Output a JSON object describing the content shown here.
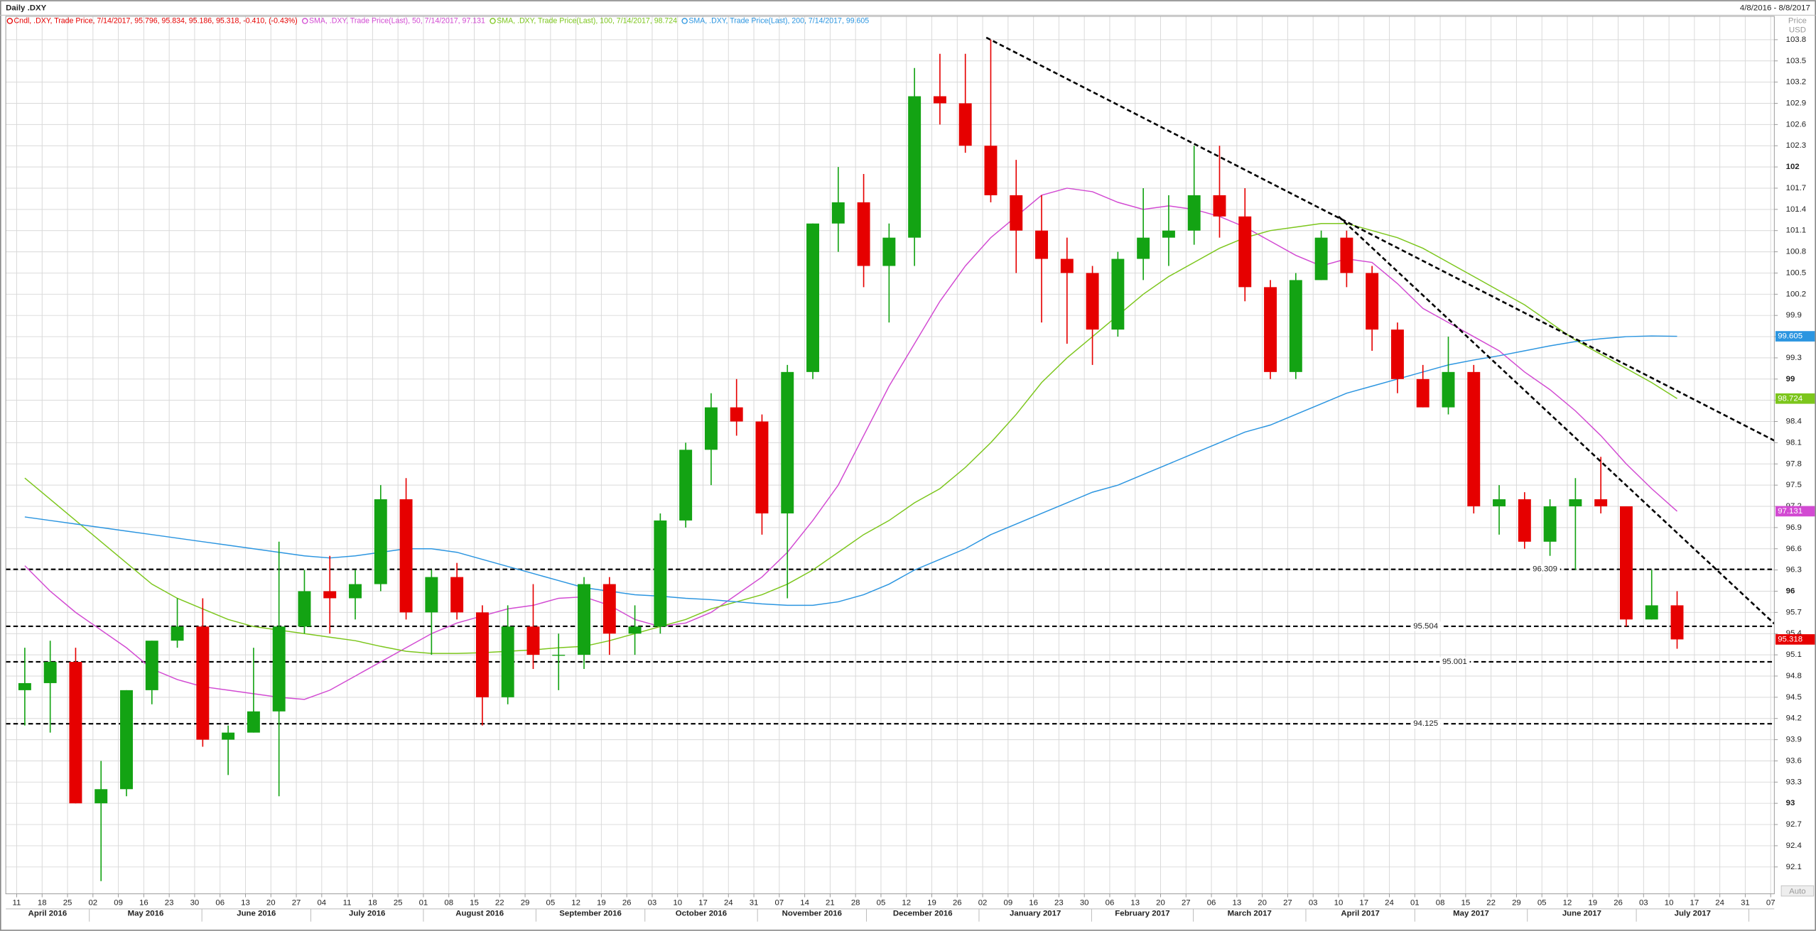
{
  "chart_data": {
    "type": "candlestick",
    "title": "Daily .DXY",
    "date_range": "4/8/2016 - 8/8/2017",
    "y_label_lines": [
      "Price",
      "USD"
    ],
    "y_scale_mode": "Auto",
    "grid": true,
    "up_color": "#13a313",
    "down_color": "#e60000",
    "xlim": [
      "2016-04-08",
      "2017-08-08"
    ],
    "ylim": [
      91.72,
      104.13
    ],
    "yticks": [
      103.8,
      103.5,
      103.2,
      102.9,
      102.6,
      102.3,
      102,
      101.7,
      101.4,
      101.1,
      100.8,
      100.5,
      100.2,
      99.9,
      99.6,
      99.3,
      99,
      98.7,
      98.4,
      98.1,
      97.8,
      97.5,
      97.2,
      96.9,
      96.6,
      96.3,
      96,
      95.7,
      95.4,
      95.1,
      94.8,
      94.5,
      94.2,
      93.9,
      93.6,
      93.3,
      93,
      92.7,
      92.4,
      92.1
    ],
    "xticks": [
      {
        "value": "2016-04-11",
        "label": "11"
      },
      {
        "value": "2016-04-18",
        "label": "18"
      },
      {
        "value": "2016-04-25",
        "label": "25"
      },
      {
        "value": "2016-05-02",
        "label": "02"
      },
      {
        "value": "2016-05-09",
        "label": "09"
      },
      {
        "value": "2016-05-16",
        "label": "16"
      },
      {
        "value": "2016-05-23",
        "label": "23"
      },
      {
        "value": "2016-05-30",
        "label": "30"
      },
      {
        "value": "2016-06-06",
        "label": "06"
      },
      {
        "value": "2016-06-13",
        "label": "13"
      },
      {
        "value": "2016-06-20",
        "label": "20"
      },
      {
        "value": "2016-06-27",
        "label": "27"
      },
      {
        "value": "2016-07-04",
        "label": "04"
      },
      {
        "value": "2016-07-11",
        "label": "11"
      },
      {
        "value": "2016-07-18",
        "label": "18"
      },
      {
        "value": "2016-07-25",
        "label": "25"
      },
      {
        "value": "2016-08-01",
        "label": "01"
      },
      {
        "value": "2016-08-08",
        "label": "08"
      },
      {
        "value": "2016-08-15",
        "label": "15"
      },
      {
        "value": "2016-08-22",
        "label": "22"
      },
      {
        "value": "2016-08-29",
        "label": "29"
      },
      {
        "value": "2016-09-05",
        "label": "05"
      },
      {
        "value": "2016-09-12",
        "label": "12"
      },
      {
        "value": "2016-09-19",
        "label": "19"
      },
      {
        "value": "2016-09-26",
        "label": "26"
      },
      {
        "value": "2016-10-03",
        "label": "03"
      },
      {
        "value": "2016-10-10",
        "label": "10"
      },
      {
        "value": "2016-10-17",
        "label": "17"
      },
      {
        "value": "2016-10-24",
        "label": "24"
      },
      {
        "value": "2016-10-31",
        "label": "31"
      },
      {
        "value": "2016-11-07",
        "label": "07"
      },
      {
        "value": "2016-11-14",
        "label": "14"
      },
      {
        "value": "2016-11-21",
        "label": "21"
      },
      {
        "value": "2016-11-28",
        "label": "28"
      },
      {
        "value": "2016-12-05",
        "label": "05"
      },
      {
        "value": "2016-12-12",
        "label": "12"
      },
      {
        "value": "2016-12-19",
        "label": "19"
      },
      {
        "value": "2016-12-26",
        "label": "26"
      },
      {
        "value": "2017-01-02",
        "label": "02"
      },
      {
        "value": "2017-01-09",
        "label": "09"
      },
      {
        "value": "2017-01-16",
        "label": "16"
      },
      {
        "value": "2017-01-23",
        "label": "23"
      },
      {
        "value": "2017-01-30",
        "label": "30"
      },
      {
        "value": "2017-02-06",
        "label": "06"
      },
      {
        "value": "2017-02-13",
        "label": "13"
      },
      {
        "value": "2017-02-20",
        "label": "20"
      },
      {
        "value": "2017-02-27",
        "label": "27"
      },
      {
        "value": "2017-03-06",
        "label": "06"
      },
      {
        "value": "2017-03-13",
        "label": "13"
      },
      {
        "value": "2017-03-20",
        "label": "20"
      },
      {
        "value": "2017-03-27",
        "label": "27"
      },
      {
        "value": "2017-04-03",
        "label": "03"
      },
      {
        "value": "2017-04-10",
        "label": "10"
      },
      {
        "value": "2017-04-17",
        "label": "17"
      },
      {
        "value": "2017-04-24",
        "label": "24"
      },
      {
        "value": "2017-05-01",
        "label": "01"
      },
      {
        "value": "2017-05-08",
        "label": "08"
      },
      {
        "value": "2017-05-15",
        "label": "15"
      },
      {
        "value": "2017-05-22",
        "label": "22"
      },
      {
        "value": "2017-05-29",
        "label": "29"
      },
      {
        "value": "2017-06-05",
        "label": "05"
      },
      {
        "value": "2017-06-12",
        "label": "12"
      },
      {
        "value": "2017-06-19",
        "label": "19"
      },
      {
        "value": "2017-06-26",
        "label": "26"
      },
      {
        "value": "2017-07-03",
        "label": "03"
      },
      {
        "value": "2017-07-10",
        "label": "10"
      },
      {
        "value": "2017-07-17",
        "label": "17"
      },
      {
        "value": "2017-07-24",
        "label": "24"
      },
      {
        "value": "2017-07-31",
        "label": "31"
      },
      {
        "value": "2017-08-07",
        "label": "07"
      }
    ],
    "months": [
      "April 2016",
      "May 2016",
      "June 2016",
      "July 2016",
      "August 2016",
      "September 2016",
      "October 2016",
      "November 2016",
      "December 2016",
      "January 2017",
      "February 2017",
      "March 2017",
      "April 2017",
      "May 2017",
      "June 2017",
      "July 2017"
    ],
    "candles": {
      "name": "Cndl, .DXY, Trade Price, 7/14/2017, 95.796, 95.834, 95.186, 95.318, -0.410, (-0.43%)",
      "color": "#e60000",
      "x": [
        "2016-04-11",
        "2016-04-18",
        "2016-04-25",
        "2016-05-02",
        "2016-05-09",
        "2016-05-16",
        "2016-05-23",
        "2016-05-30",
        "2016-06-06",
        "2016-06-13",
        "2016-06-20",
        "2016-06-27",
        "2016-07-04",
        "2016-07-11",
        "2016-07-18",
        "2016-07-25",
        "2016-08-01",
        "2016-08-08",
        "2016-08-15",
        "2016-08-22",
        "2016-08-29",
        "2016-09-05",
        "2016-09-12",
        "2016-09-19",
        "2016-09-26",
        "2016-10-03",
        "2016-10-10",
        "2016-10-17",
        "2016-10-24",
        "2016-10-31",
        "2016-11-07",
        "2016-11-14",
        "2016-11-21",
        "2016-11-28",
        "2016-12-05",
        "2016-12-12",
        "2016-12-19",
        "2016-12-26",
        "2017-01-02",
        "2017-01-09",
        "2017-01-16",
        "2017-01-23",
        "2017-01-30",
        "2017-02-06",
        "2017-02-13",
        "2017-02-20",
        "2017-02-27",
        "2017-03-06",
        "2017-03-13",
        "2017-03-20",
        "2017-03-27",
        "2017-04-03",
        "2017-04-10",
        "2017-04-17",
        "2017-04-24",
        "2017-05-01",
        "2017-05-08",
        "2017-05-15",
        "2017-05-22",
        "2017-05-29",
        "2017-06-05",
        "2017-06-12",
        "2017-06-19",
        "2017-06-26",
        "2017-07-03",
        "2017-07-10"
      ],
      "open": [
        94.6,
        94.7,
        95.0,
        93.0,
        93.2,
        94.6,
        95.3,
        95.5,
        93.9,
        94.0,
        94.3,
        95.5,
        96.0,
        95.9,
        96.1,
        97.3,
        95.7,
        96.2,
        95.7,
        94.5,
        95.5,
        95.1,
        95.1,
        96.1,
        95.4,
        95.5,
        97.0,
        98.0,
        98.6,
        98.4,
        97.1,
        99.1,
        101.2,
        101.5,
        100.6,
        101.0,
        103.0,
        102.9,
        102.3,
        101.6,
        101.1,
        100.7,
        100.5,
        99.7,
        100.7,
        101.0,
        101.1,
        101.6,
        101.3,
        100.3,
        99.1,
        100.4,
        101.0,
        100.5,
        99.7,
        99.0,
        98.6,
        99.1,
        97.2,
        97.3,
        96.7,
        97.2,
        97.3,
        97.2,
        95.6,
        95.8
      ],
      "high": [
        95.2,
        95.3,
        95.2,
        93.6,
        94.6,
        95.3,
        95.9,
        95.9,
        94.1,
        95.2,
        96.7,
        96.3,
        96.5,
        96.3,
        97.5,
        97.6,
        96.3,
        96.4,
        95.8,
        95.8,
        96.1,
        95.4,
        96.2,
        96.2,
        95.8,
        97.1,
        98.1,
        98.8,
        99.0,
        98.5,
        99.2,
        101.2,
        102.0,
        101.9,
        101.2,
        103.4,
        103.6,
        103.6,
        103.8,
        102.1,
        101.6,
        101.0,
        100.6,
        100.8,
        101.7,
        101.6,
        102.3,
        102.3,
        101.7,
        100.4,
        100.5,
        101.1,
        101.1,
        100.6,
        99.8,
        99.2,
        99.6,
        99.2,
        97.5,
        97.4,
        97.3,
        97.6,
        97.9,
        97.2,
        96.3,
        96.0
      ],
      "low": [
        94.1,
        94.0,
        93.0,
        91.9,
        93.1,
        94.4,
        95.2,
        93.8,
        93.4,
        94.0,
        93.1,
        95.4,
        95.4,
        95.6,
        96.0,
        95.6,
        95.1,
        95.6,
        94.1,
        94.4,
        94.9,
        94.6,
        94.9,
        95.1,
        95.1,
        95.4,
        96.9,
        97.5,
        98.2,
        96.8,
        95.9,
        99.0,
        100.8,
        100.3,
        99.8,
        100.6,
        102.6,
        102.2,
        101.5,
        100.5,
        99.8,
        99.5,
        99.2,
        99.6,
        100.4,
        100.6,
        100.9,
        101.0,
        100.1,
        99.0,
        99.0,
        100.4,
        100.3,
        99.4,
        98.8,
        98.6,
        98.5,
        97.1,
        96.8,
        96.6,
        96.5,
        96.3,
        97.1,
        95.5,
        95.6,
        95.186
      ],
      "close": [
        94.7,
        95.0,
        93.0,
        93.2,
        94.6,
        95.3,
        95.5,
        93.9,
        94.0,
        94.3,
        95.5,
        96.0,
        95.9,
        96.1,
        97.3,
        95.7,
        96.2,
        95.7,
        94.5,
        95.5,
        95.1,
        95.1,
        96.1,
        95.4,
        95.5,
        97.0,
        98.0,
        98.6,
        98.4,
        97.1,
        99.1,
        101.2,
        101.5,
        100.6,
        101.0,
        103.0,
        102.9,
        102.3,
        101.6,
        101.1,
        100.7,
        100.5,
        99.7,
        100.7,
        101.0,
        101.1,
        101.6,
        101.3,
        100.3,
        99.1,
        100.4,
        101.0,
        100.5,
        99.7,
        99.0,
        98.6,
        99.1,
        97.2,
        97.3,
        96.7,
        97.2,
        97.3,
        97.2,
        95.6,
        95.8,
        95.318
      ]
    },
    "series": [
      {
        "name": "SMA, .DXY, Trade Price(Last), 50, 7/14/2017, 97.131",
        "color": "#d24ad2",
        "values": [
          96.36,
          96.0,
          95.7,
          95.45,
          95.2,
          94.9,
          94.75,
          94.65,
          94.6,
          94.55,
          94.5,
          94.47,
          94.6,
          94.8,
          95.0,
          95.2,
          95.4,
          95.55,
          95.65,
          95.75,
          95.8,
          95.9,
          95.92,
          95.8,
          95.6,
          95.5,
          95.55,
          95.7,
          95.95,
          96.2,
          96.55,
          97.0,
          97.5,
          98.2,
          98.9,
          99.5,
          100.1,
          100.6,
          101.0,
          101.3,
          101.6,
          101.7,
          101.65,
          101.5,
          101.4,
          101.45,
          101.4,
          101.3,
          101.15,
          100.95,
          100.75,
          100.6,
          100.7,
          100.65,
          100.35,
          100.0,
          99.8,
          99.6,
          99.4,
          99.1,
          98.85,
          98.55,
          98.2,
          97.8,
          97.45,
          97.131
        ]
      },
      {
        "name": "SMA, .DXY, Trade Price(Last), 100, 7/14/2017, 98.724",
        "color": "#7cc61c",
        "values": [
          97.6,
          97.3,
          97.0,
          96.7,
          96.4,
          96.1,
          95.9,
          95.75,
          95.6,
          95.5,
          95.45,
          95.4,
          95.35,
          95.3,
          95.22,
          95.15,
          95.12,
          95.12,
          95.13,
          95.15,
          95.17,
          95.2,
          95.22,
          95.3,
          95.4,
          95.5,
          95.6,
          95.75,
          95.85,
          95.95,
          96.1,
          96.3,
          96.55,
          96.8,
          97.0,
          97.25,
          97.45,
          97.75,
          98.1,
          98.5,
          98.95,
          99.3,
          99.6,
          99.9,
          100.2,
          100.45,
          100.65,
          100.85,
          101.0,
          101.1,
          101.15,
          101.2,
          101.2,
          101.1,
          101.0,
          100.85,
          100.65,
          100.45,
          100.25,
          100.05,
          99.8,
          99.55,
          99.35,
          99.15,
          98.95,
          98.724
        ]
      },
      {
        "name": "SMA, .DXY, Trade Price(Last), 200, 7/14/2017, 99.605",
        "color": "#2b95e0",
        "values": [
          97.05,
          97.0,
          96.95,
          96.9,
          96.85,
          96.8,
          96.75,
          96.7,
          96.65,
          96.6,
          96.55,
          96.5,
          96.47,
          96.5,
          96.55,
          96.6,
          96.6,
          96.55,
          96.45,
          96.35,
          96.25,
          96.15,
          96.05,
          96.0,
          95.95,
          95.93,
          95.9,
          95.88,
          95.85,
          95.82,
          95.8,
          95.8,
          95.85,
          95.95,
          96.1,
          96.3,
          96.45,
          96.6,
          96.8,
          96.95,
          97.1,
          97.25,
          97.4,
          97.5,
          97.65,
          97.8,
          97.95,
          98.1,
          98.25,
          98.35,
          98.5,
          98.65,
          98.8,
          98.9,
          99.0,
          99.1,
          99.2,
          99.27,
          99.33,
          99.4,
          99.47,
          99.53,
          99.57,
          99.6,
          99.61,
          99.605
        ]
      }
    ],
    "levels": [
      96.309,
      95.504,
      95.001,
      94.125
    ],
    "trendlines": [
      {
        "x": [
          "2017-01-03",
          "2017-08-08"
        ],
        "y": [
          103.83,
          98.13
        ]
      },
      {
        "x": [
          "2017-04-10",
          "2017-08-08"
        ],
        "y": [
          101.3,
          95.54
        ]
      }
    ]
  }
}
